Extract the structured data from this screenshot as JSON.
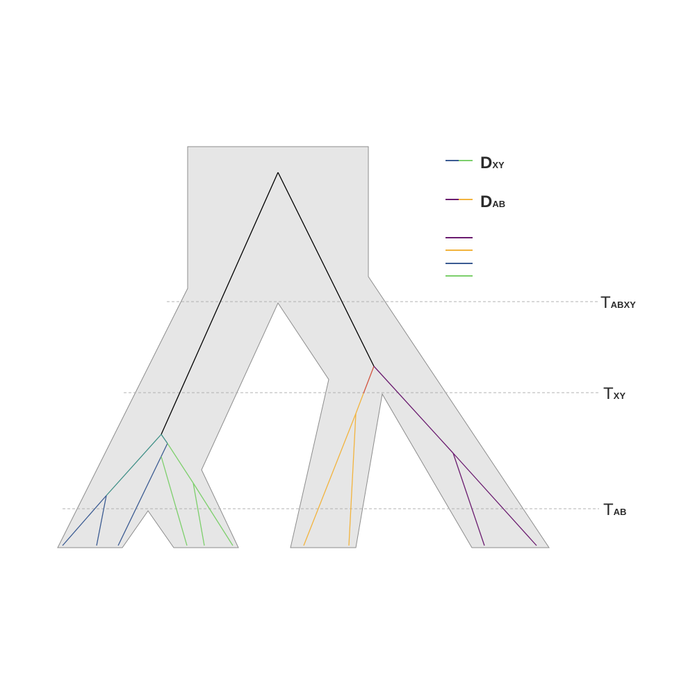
{
  "colors": {
    "population_fill": "#e6e6e6",
    "population_stroke": "#8c8c8c",
    "guide_line": "#b0b0b0",
    "ancestral_branch": "#000000",
    "pop_A": "#6a1b6f",
    "pop_B": "#f2b33d",
    "pop_X": "#3b5b92",
    "pop_Y": "#7ccf6b",
    "mixed_AB": "#d2543f",
    "mixed_XY": "#3e8f86"
  },
  "time_markers": [
    {
      "main": "T",
      "sub": "ABXY"
    },
    {
      "main": "T",
      "sub": "XY"
    },
    {
      "main": "T",
      "sub": "AB"
    }
  ],
  "legend": {
    "dxy": {
      "main": "D",
      "sub": "XY"
    },
    "dab": {
      "main": "D",
      "sub": "AB"
    },
    "swatches": [
      "pop_A",
      "pop_B",
      "pop_X",
      "pop_Y"
    ]
  }
}
